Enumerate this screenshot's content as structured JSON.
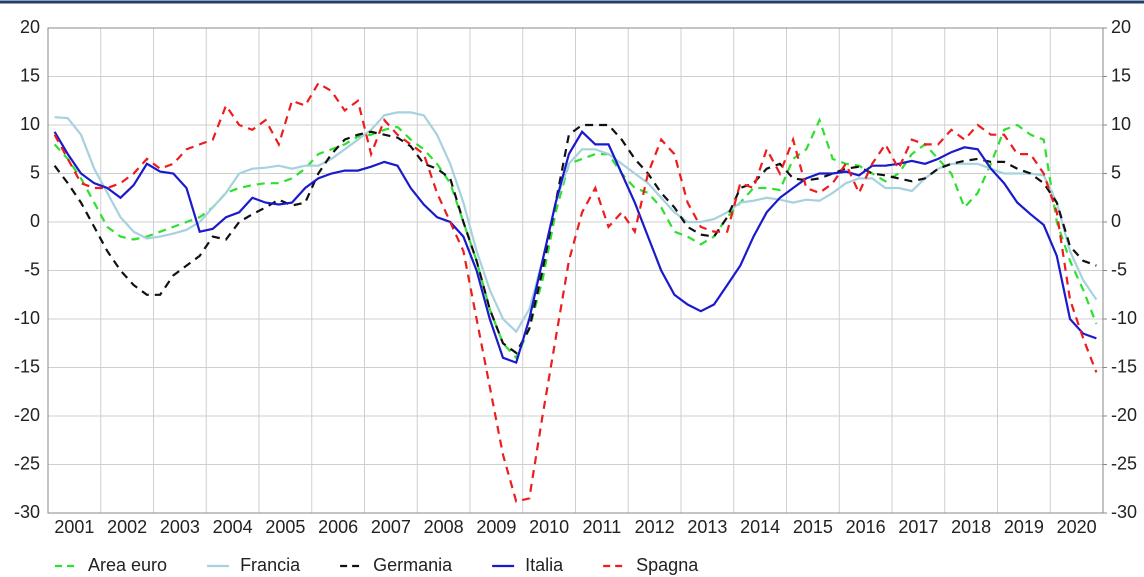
{
  "chart_data": {
    "type": "line",
    "categories": [
      "2001",
      null,
      null,
      null,
      "2002",
      null,
      null,
      null,
      "2003",
      null,
      null,
      null,
      "2004",
      null,
      null,
      null,
      "2005",
      null,
      null,
      null,
      "2006",
      null,
      null,
      null,
      "2007",
      null,
      null,
      null,
      "2008",
      null,
      null,
      null,
      "2009",
      null,
      null,
      null,
      "2010",
      null,
      null,
      null,
      "2011",
      null,
      null,
      null,
      "2012",
      null,
      null,
      null,
      "2013",
      null,
      null,
      null,
      "2014",
      null,
      null,
      null,
      "2015",
      null,
      null,
      null,
      "2016",
      null,
      null,
      null,
      "2017",
      null,
      null,
      null,
      "2018",
      null,
      null,
      null,
      "2019",
      null,
      null,
      null,
      "2020",
      null,
      null,
      null
    ],
    "ylim": [
      -30,
      20
    ],
    "yticks": [
      -30,
      -25,
      -20,
      -15,
      -10,
      -5,
      0,
      5,
      10,
      15,
      20
    ],
    "y2lim": [
      -30,
      20
    ],
    "y2ticks": [
      -30,
      -25,
      -20,
      -15,
      -10,
      -5,
      0,
      5,
      10,
      15,
      20
    ],
    "grid": true,
    "legend": "bottom",
    "series": [
      {
        "name": "Area euro",
        "color": "#2ee02e",
        "dashed": true,
        "values": [
          8,
          6.5,
          4.5,
          2,
          -0.5,
          -1.5,
          -1.8,
          -1.5,
          -1,
          -0.5,
          0,
          0.5,
          1.5,
          3,
          3.5,
          3.8,
          4,
          4,
          4.5,
          5.5,
          7,
          7.5,
          8,
          8.8,
          9,
          9.5,
          9.8,
          8.5,
          7.5,
          6,
          4,
          0,
          -4,
          -9,
          -12.5,
          -14,
          -11,
          -6,
          1,
          6,
          6.5,
          7,
          7,
          5,
          3.5,
          3,
          1.5,
          -1,
          -1.5,
          -2.3,
          -1.5,
          0.5,
          2,
          3.5,
          3.5,
          3.3,
          6.5,
          7.5,
          10.5,
          6.5,
          6,
          5.8,
          5,
          4.2,
          5,
          7,
          8,
          6.5,
          5,
          1.5,
          3,
          6,
          9.5,
          10,
          9,
          8.5,
          0,
          -4,
          -7,
          -10.5
        ]
      },
      {
        "name": "Francia",
        "color": "#a6d2de",
        "dashed": false,
        "values": [
          10.8,
          10.7,
          9,
          5.5,
          3,
          0.5,
          -1,
          -1.7,
          -1.5,
          -1.2,
          -0.8,
          0,
          1.5,
          3,
          5,
          5.5,
          5.6,
          5.8,
          5.5,
          5.8,
          5.8,
          6.5,
          7.5,
          8.5,
          9.5,
          11,
          11.3,
          11.3,
          11,
          9,
          6,
          2,
          -3,
          -7,
          -10,
          -11.3,
          -9,
          -4,
          2,
          6,
          7.5,
          7.5,
          7,
          6,
          5,
          4,
          2.5,
          1,
          0,
          0,
          0.3,
          1,
          2,
          2.2,
          2.5,
          2.3,
          2,
          2.3,
          2.2,
          3,
          4,
          4.5,
          4.5,
          3.5,
          3.5,
          3.2,
          4.5,
          5.5,
          6,
          6,
          6,
          5.5,
          5,
          5,
          5,
          4.8,
          2,
          -3,
          -6,
          -8
        ]
      },
      {
        "name": "Germania",
        "color": "#111111",
        "dashed": true,
        "values": [
          5.8,
          4,
          2,
          -0.5,
          -3,
          -5,
          -6.5,
          -7.5,
          -7.5,
          -5.5,
          -4.5,
          -3.5,
          -1.5,
          -1.8,
          0,
          0.8,
          1.5,
          2.3,
          1.7,
          2,
          5,
          7,
          8.5,
          9,
          9.3,
          9,
          8.7,
          7.8,
          6,
          5.5,
          4.5,
          0,
          -4,
          -9,
          -12.5,
          -13.5,
          -11,
          -5,
          2,
          9,
          10,
          10,
          10,
          8.5,
          6.5,
          5,
          3,
          1.5,
          -0.5,
          -1.3,
          -1.5,
          0.5,
          3.5,
          4,
          5.5,
          6,
          4.5,
          4.3,
          4.5,
          5,
          5.5,
          5.7,
          5,
          4.8,
          4.5,
          4.2,
          4.5,
          5.5,
          6,
          6.3,
          6.5,
          6.2,
          6.2,
          5.5,
          5,
          4,
          2,
          -2.5,
          -4,
          -4.5
        ]
      },
      {
        "name": "Italia",
        "color": "#1a1acc",
        "dashed": false,
        "values": [
          9.3,
          7,
          5,
          4,
          3.5,
          2.5,
          3.8,
          6,
          5.2,
          5,
          3.5,
          -1,
          -0.7,
          0.5,
          1,
          2.5,
          2,
          1.8,
          2,
          3.5,
          4.5,
          5,
          5.3,
          5.3,
          5.7,
          6.2,
          5.8,
          3.5,
          1.8,
          0.5,
          0,
          -1.5,
          -5,
          -10,
          -14,
          -14.5,
          -10,
          -4,
          2,
          7,
          9.3,
          8,
          8,
          5,
          2,
          -1.5,
          -5,
          -7.5,
          -8.5,
          -9.2,
          -8.5,
          -6.5,
          -4.5,
          -1.5,
          1,
          2.5,
          3.5,
          4.5,
          5,
          5,
          5.2,
          4.8,
          5.8,
          5.8,
          6,
          6.3,
          6,
          6.5,
          7.2,
          7.7,
          7.5,
          5.5,
          4,
          2,
          0.8,
          -0.3,
          -3.5,
          -10,
          -11.5,
          -12
        ]
      },
      {
        "name": "Spagna",
        "color": "#ee1c1c",
        "dashed": true,
        "values": [
          9,
          6.5,
          4,
          3.5,
          3.5,
          4,
          5,
          6.5,
          5.5,
          6,
          7.5,
          8,
          8.5,
          12,
          10,
          9.5,
          10.5,
          8,
          12.5,
          12,
          14.3,
          13.5,
          11.5,
          12.5,
          7,
          10.5,
          9,
          8,
          7,
          3,
          0,
          -3,
          -10,
          -17,
          -24,
          -28.8,
          -28.5,
          -20,
          -12,
          -4,
          1,
          3.5,
          -0.5,
          1,
          -1,
          5,
          8.5,
          7,
          2,
          -0.5,
          -1,
          -1,
          4,
          3.5,
          7.5,
          5,
          8.5,
          3.5,
          3,
          4,
          6,
          3,
          6,
          8,
          5.5,
          8.5,
          8,
          8,
          9.5,
          8.5,
          10,
          9,
          9,
          7,
          7,
          5,
          1,
          -8,
          -12,
          -15.5
        ]
      }
    ]
  }
}
